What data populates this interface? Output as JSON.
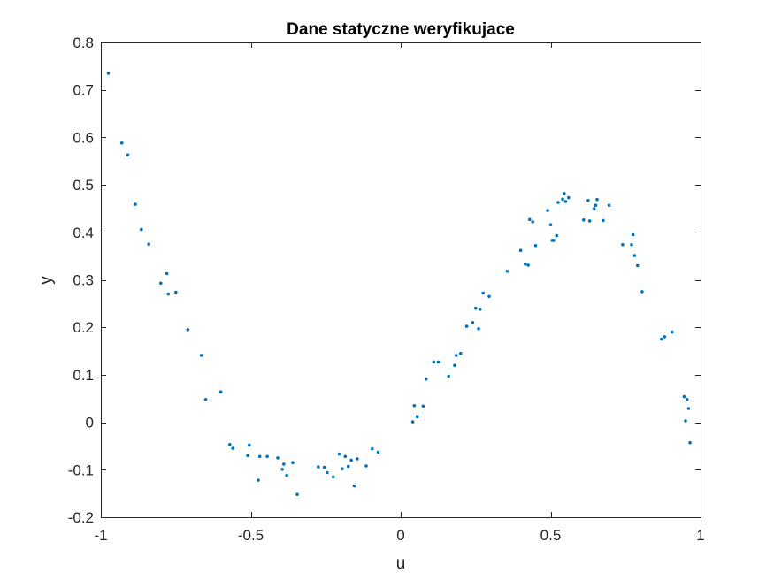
{
  "chart_data": {
    "type": "scatter",
    "title": "Dane statyczne weryfikujace",
    "xlabel": "u",
    "ylabel": "y",
    "xlim": [
      -1,
      1
    ],
    "ylim": [
      -0.2,
      0.8
    ],
    "xticks": [
      -1,
      -0.5,
      0,
      0.5,
      1
    ],
    "xtick_labels": [
      "-1",
      "-0.5",
      "0",
      "0.5",
      "1"
    ],
    "yticks": [
      -0.2,
      -0.1,
      0,
      0.1,
      0.2,
      0.3,
      0.4,
      0.5,
      0.6,
      0.7,
      0.8
    ],
    "ytick_labels": [
      "-0.2",
      "-0.1",
      "0",
      "0.1",
      "0.2",
      "0.3",
      "0.4",
      "0.5",
      "0.6",
      "0.7",
      "0.8"
    ],
    "grid": false,
    "marker_color": "#0072BD",
    "series": [
      {
        "points": [
          [
            -0.975,
            0.735
          ],
          [
            -0.93,
            0.588
          ],
          [
            -0.91,
            0.563
          ],
          [
            -0.885,
            0.459
          ],
          [
            -0.865,
            0.406
          ],
          [
            -0.84,
            0.375
          ],
          [
            -0.8,
            0.293
          ],
          [
            -0.78,
            0.313
          ],
          [
            -0.775,
            0.27
          ],
          [
            -0.75,
            0.274
          ],
          [
            -0.71,
            0.195
          ],
          [
            -0.665,
            0.141
          ],
          [
            -0.65,
            0.048
          ],
          [
            -0.6,
            0.064
          ],
          [
            -0.57,
            -0.047
          ],
          [
            -0.56,
            -0.055
          ],
          [
            -0.51,
            -0.07
          ],
          [
            -0.505,
            -0.048
          ],
          [
            -0.475,
            -0.122
          ],
          [
            -0.47,
            -0.072
          ],
          [
            -0.445,
            -0.072
          ],
          [
            -0.41,
            -0.075
          ],
          [
            -0.395,
            -0.099
          ],
          [
            -0.39,
            -0.088
          ],
          [
            -0.38,
            -0.112
          ],
          [
            -0.36,
            -0.085
          ],
          [
            -0.345,
            -0.152
          ],
          [
            -0.275,
            -0.094
          ],
          [
            -0.255,
            -0.095
          ],
          [
            -0.245,
            -0.106
          ],
          [
            -0.225,
            -0.115
          ],
          [
            -0.205,
            -0.067
          ],
          [
            -0.195,
            -0.098
          ],
          [
            -0.185,
            -0.072
          ],
          [
            -0.175,
            -0.093
          ],
          [
            -0.165,
            -0.08
          ],
          [
            -0.155,
            -0.134
          ],
          [
            -0.145,
            -0.077
          ],
          [
            -0.115,
            -0.092
          ],
          [
            -0.095,
            -0.056
          ],
          [
            -0.075,
            -0.063
          ],
          [
            0.04,
            0.001
          ],
          [
            0.045,
            0.035
          ],
          [
            0.055,
            0.012
          ],
          [
            0.075,
            0.034
          ],
          [
            0.085,
            0.091
          ],
          [
            0.11,
            0.127
          ],
          [
            0.125,
            0.127
          ],
          [
            0.16,
            0.097
          ],
          [
            0.18,
            0.12
          ],
          [
            0.185,
            0.141
          ],
          [
            0.2,
            0.145
          ],
          [
            0.22,
            0.202
          ],
          [
            0.24,
            0.21
          ],
          [
            0.25,
            0.24
          ],
          [
            0.26,
            0.197
          ],
          [
            0.265,
            0.238
          ],
          [
            0.275,
            0.272
          ],
          [
            0.295,
            0.265
          ],
          [
            0.355,
            0.318
          ],
          [
            0.4,
            0.362
          ],
          [
            0.415,
            0.333
          ],
          [
            0.425,
            0.331
          ],
          [
            0.43,
            0.427
          ],
          [
            0.44,
            0.422
          ],
          [
            0.45,
            0.372
          ],
          [
            0.49,
            0.446
          ],
          [
            0.5,
            0.416
          ],
          [
            0.505,
            0.383
          ],
          [
            0.51,
            0.383
          ],
          [
            0.52,
            0.393
          ],
          [
            0.525,
            0.463
          ],
          [
            0.54,
            0.47
          ],
          [
            0.545,
            0.482
          ],
          [
            0.55,
            0.465
          ],
          [
            0.56,
            0.473
          ],
          [
            0.61,
            0.426
          ],
          [
            0.625,
            0.467
          ],
          [
            0.63,
            0.424
          ],
          [
            0.645,
            0.45
          ],
          [
            0.65,
            0.457
          ],
          [
            0.655,
            0.469
          ],
          [
            0.675,
            0.425
          ],
          [
            0.695,
            0.457
          ],
          [
            0.74,
            0.374
          ],
          [
            0.77,
            0.374
          ],
          [
            0.775,
            0.395
          ],
          [
            0.78,
            0.351
          ],
          [
            0.79,
            0.33
          ],
          [
            0.805,
            0.275
          ],
          [
            0.87,
            0.175
          ],
          [
            0.88,
            0.18
          ],
          [
            0.905,
            0.19
          ],
          [
            0.945,
            0.054
          ],
          [
            0.95,
            0.003
          ],
          [
            0.955,
            0.048
          ],
          [
            0.96,
            0.029
          ],
          [
            0.965,
            -0.043
          ]
        ]
      }
    ]
  }
}
